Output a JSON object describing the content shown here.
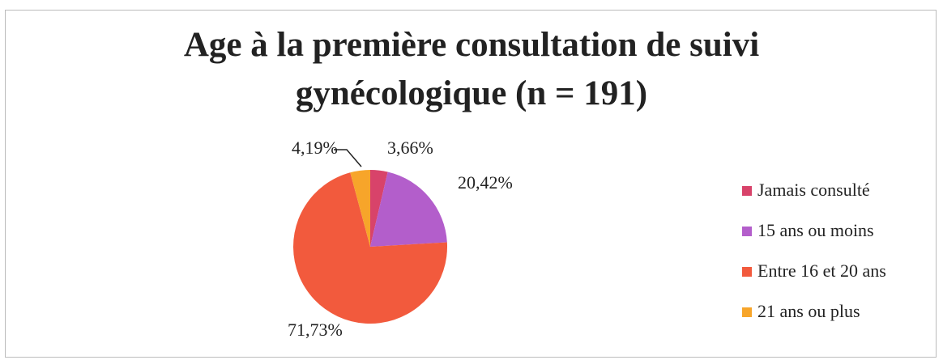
{
  "chart_data": {
    "type": "pie",
    "title": "Age à la première consultation de suivi gynécologique (n = 191)",
    "categories": [
      "Jamais consulté",
      "15 ans ou moins",
      "Entre 16 et 20 ans",
      "21 ans ou plus"
    ],
    "values": [
      3.66,
      20.42,
      71.73,
      4.19
    ],
    "value_labels": [
      "3,66%",
      "20,42%",
      "71,73%",
      "4,19%"
    ],
    "colors": [
      "#d8436a",
      "#b35ecb",
      "#f25a3d",
      "#f7a52a"
    ],
    "legend": "right"
  }
}
